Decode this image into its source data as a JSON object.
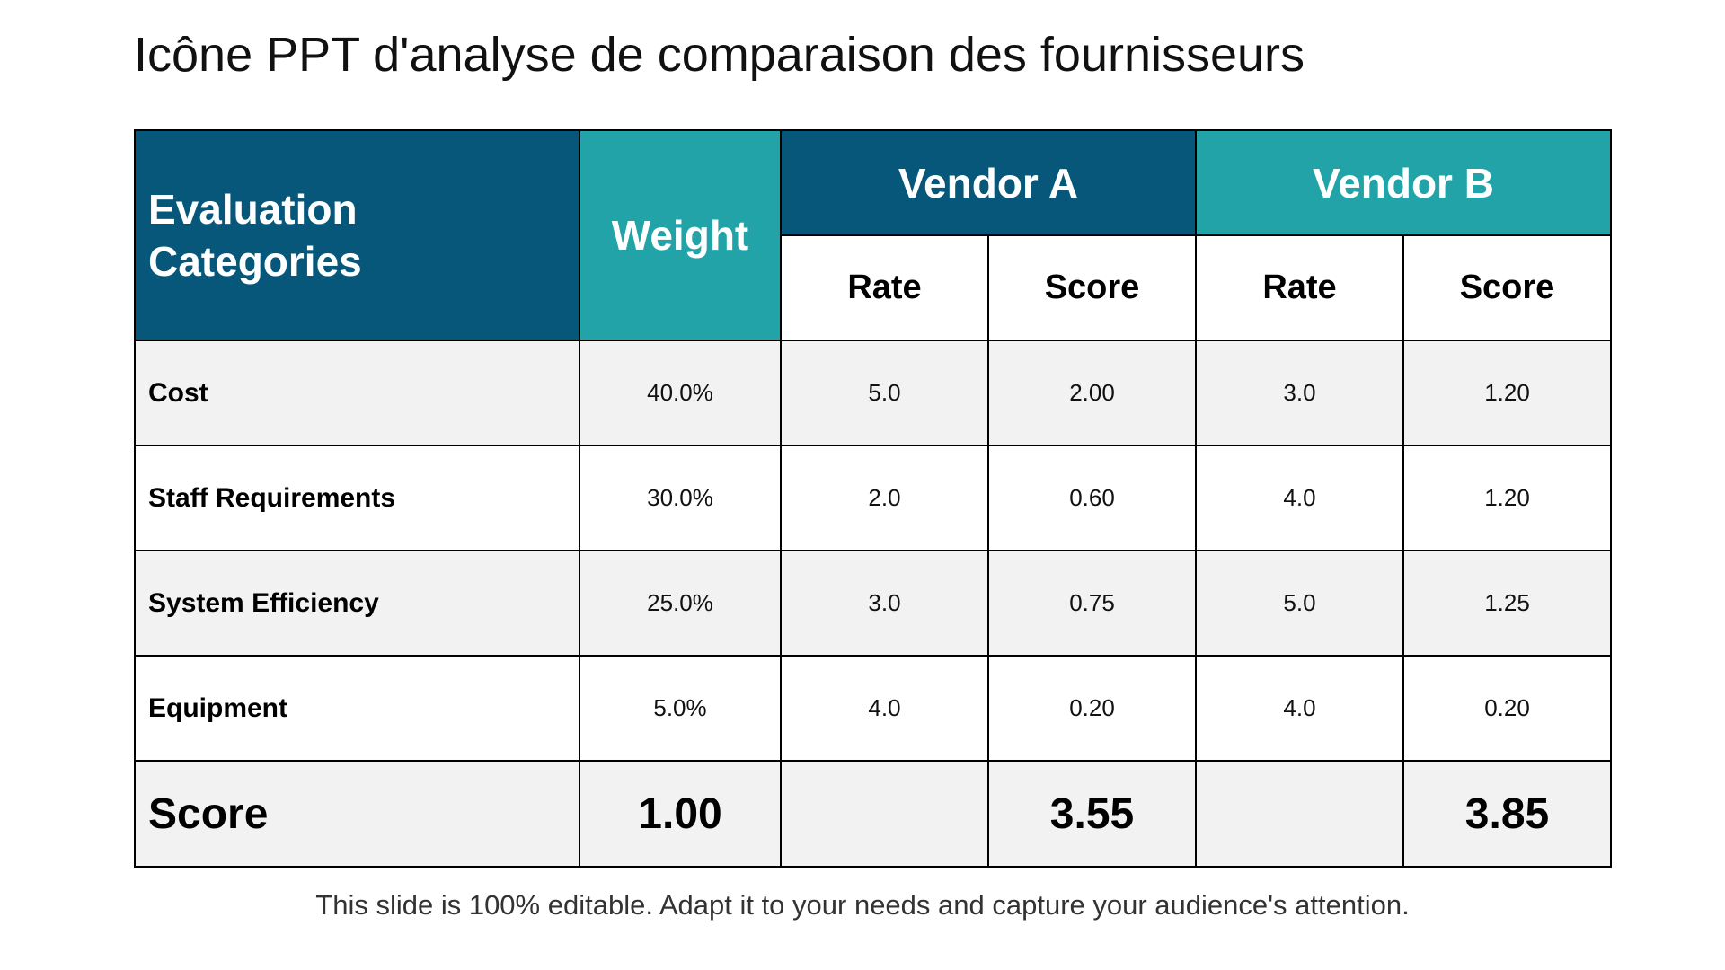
{
  "title": "Icône PPT d'analyse de comparaison des fournisseurs",
  "table": {
    "header": {
      "category_line1": "Evaluation",
      "category_line2": "Categories",
      "weight": "Weight",
      "vendor_a": "Vendor A",
      "vendor_b": "Vendor B",
      "rate": "Rate",
      "score": "Score"
    },
    "rows": [
      {
        "category": "Cost",
        "weight": "40.0%",
        "a_rate": "5.0",
        "a_score": "2.00",
        "b_rate": "3.0",
        "b_score": "1.20"
      },
      {
        "category": "Staff Requirements",
        "weight": "30.0%",
        "a_rate": "2.0",
        "a_score": "0.60",
        "b_rate": "4.0",
        "b_score": "1.20"
      },
      {
        "category": "System Efficiency",
        "weight": "25.0%",
        "a_rate": "3.0",
        "a_score": "0.75",
        "b_rate": "5.0",
        "b_score": "1.25"
      },
      {
        "category": "Equipment",
        "weight": "5.0%",
        "a_rate": "4.0",
        "a_score": "0.20",
        "b_rate": "4.0",
        "b_score": "0.20"
      }
    ],
    "total": {
      "label": "Score",
      "weight": "1.00",
      "a_rate": "",
      "a_score": "3.55",
      "b_rate": "",
      "b_score": "3.85"
    }
  },
  "footer": "This slide is 100% editable. Adapt it to your needs and capture your audience's attention.",
  "colors": {
    "dark_teal": "#06577a",
    "teal": "#21a3a8",
    "row_gray": "#f2f2f2"
  }
}
